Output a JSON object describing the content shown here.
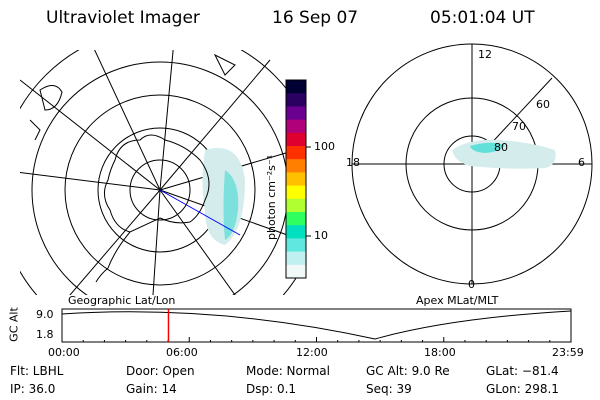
{
  "header": {
    "instrument": "Ultraviolet Imager",
    "date": "16 Sep 07",
    "time": "05:01:04 UT"
  },
  "left_map": {
    "label": "Geographic Lat/Lon"
  },
  "colorbar": {
    "unit_label": "photon cm⁻²s⁻¹",
    "ticks": [
      "100",
      "10"
    ],
    "colors": [
      "#000033",
      "#2a0060",
      "#6a0090",
      "#b0007a",
      "#e00030",
      "#ff3000",
      "#ff8000",
      "#ffc000",
      "#ffff00",
      "#b0ff30",
      "#30ff60",
      "#00e0c0",
      "#60e8e0",
      "#c0f0f0",
      "#f0f8f8"
    ]
  },
  "right_map": {
    "label": "Apex MLat/MLT",
    "mlt_labels": {
      "top": "12",
      "left": "18",
      "right": "6",
      "bottom": "0"
    },
    "lat_labels": [
      "60",
      "70",
      "80"
    ]
  },
  "timeline": {
    "y_label": "GC Alt",
    "y_ticks": [
      "9.0",
      "1.8"
    ],
    "x_ticks": [
      "00:00",
      "06:00",
      "12:00",
      "18:00",
      "23:59"
    ],
    "current_marker_hour": 5.02
  },
  "info": {
    "filter": "Flt: LBHL",
    "ip": "IP: 36.0",
    "door": "Door: Open",
    "gain": "Gain: 14",
    "mode": "Mode: Normal",
    "dsp": "Dsp:    0.1",
    "gc_alt": "GC Alt: 9.0 Re",
    "seq": "Seq: 39",
    "glat": "GLat: −81.4",
    "glon": "GLon: 298.1"
  }
}
